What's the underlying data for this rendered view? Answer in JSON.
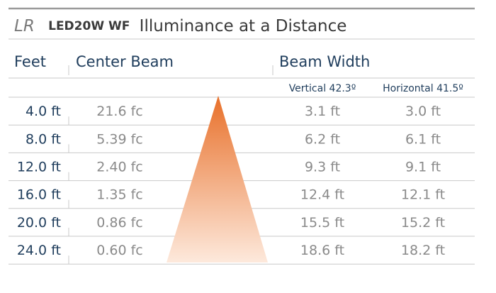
{
  "title": {
    "prefix": "LR",
    "model": "LED20W WF",
    "text": "Illuminance at a Distance"
  },
  "table": {
    "headers": [
      "Feet",
      "Center Beam",
      "Beam Width"
    ],
    "subheaders": [
      "Vertical 42.3º",
      "Horizontal 41.5º"
    ],
    "rows": [
      [
        "4.0 ft",
        "21.6 fc",
        "3.1 ft",
        "3.0 ft"
      ],
      [
        "8.0 ft",
        "5.39 fc",
        "6.2 ft",
        "6.1 ft"
      ],
      [
        "12.0 ft",
        "2.40 fc",
        "9.3 ft",
        "9.1 ft"
      ],
      [
        "16.0 ft",
        "1.35 fc",
        "12.4 ft",
        "12.1 ft"
      ],
      [
        "20.0 ft",
        "0.86 fc",
        "15.5 ft",
        "15.2 ft"
      ],
      [
        "24.0 ft",
        "0.60 fc",
        "18.6 ft",
        "18.2 ft"
      ]
    ]
  }
}
